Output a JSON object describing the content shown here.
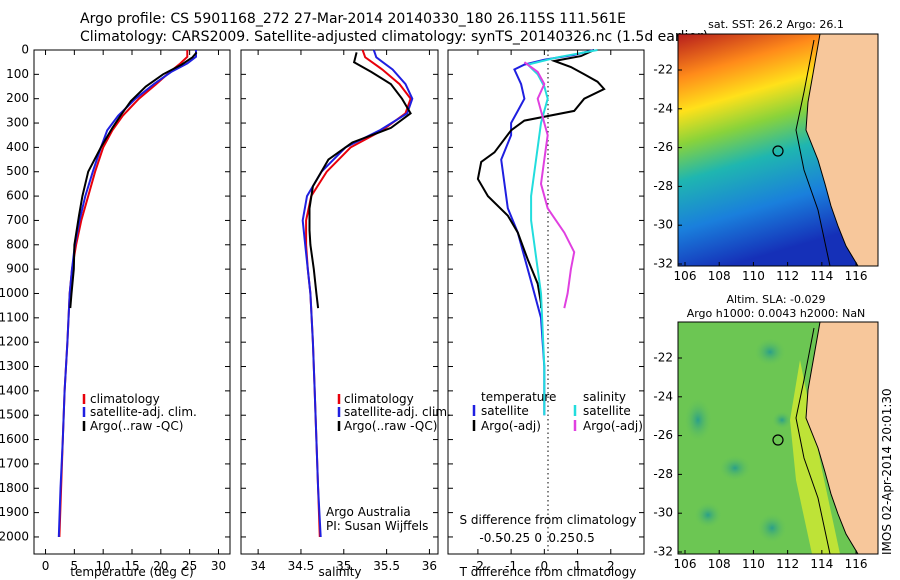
{
  "header": {
    "line1": "Argo profile: CS 5901168_272 27-Mar-2014 20140330_180 26.115S 111.561E",
    "line2": "Climatology: CARS2009. Satellite-adjusted climatology: synTS_20140326.nc (1.5d earlier)"
  },
  "colors": {
    "climatology": "#e8000b",
    "satellite": "#1f1fe0",
    "argo": "#000000",
    "sat_s": "#22dddd",
    "argo_s": "#e040e0",
    "land": "#f7c79b"
  },
  "depth_ticks": [
    "0",
    "100",
    "200",
    "300",
    "400",
    "500",
    "600",
    "700",
    "800",
    "900",
    "1000",
    "1100",
    "1200",
    "1300",
    "1400",
    "1500",
    "1600",
    "1700",
    "1800",
    "1900",
    "2000"
  ],
  "chart_data": [
    {
      "type": "line",
      "id": "temperature",
      "xlabel": "temperature (deg C)",
      "xlim": [
        -2,
        32
      ],
      "ylim": [
        0,
        2070
      ],
      "xticks": [
        "0",
        "5",
        "10",
        "15",
        "20",
        "25",
        "30"
      ],
      "legend": [
        "climatology",
        "satellite-adj. clim.",
        "Argo(..raw -QC)"
      ],
      "series": [
        {
          "name": "climatology",
          "color": "#e8000b",
          "points": [
            [
              24.6,
              0
            ],
            [
              24.6,
              28
            ],
            [
              23.4,
              55
            ],
            [
              21.6,
              90
            ],
            [
              19.2,
              140
            ],
            [
              16.2,
              200
            ],
            [
              13.4,
              270
            ],
            [
              11.6,
              330
            ],
            [
              10.0,
              400
            ],
            [
              8.6,
              500
            ],
            [
              7.4,
              600
            ],
            [
              6.2,
              700
            ],
            [
              5.3,
              800
            ],
            [
              4.6,
              900
            ],
            [
              4.2,
              1000
            ],
            [
              3.8,
              1200
            ],
            [
              3.3,
              1400
            ],
            [
              3.0,
              1600
            ],
            [
              2.7,
              1800
            ],
            [
              2.4,
              2000
            ]
          ]
        },
        {
          "name": "satellite-adj. clim.",
          "color": "#1f1fe0",
          "points": [
            [
              26.1,
              0
            ],
            [
              26.1,
              28
            ],
            [
              24.6,
              55
            ],
            [
              21.8,
              90
            ],
            [
              18.8,
              140
            ],
            [
              15.6,
              200
            ],
            [
              12.6,
              270
            ],
            [
              10.7,
              330
            ],
            [
              9.6,
              400
            ],
            [
              8.2,
              500
            ],
            [
              6.9,
              600
            ],
            [
              5.9,
              700
            ],
            [
              5.1,
              800
            ],
            [
              4.6,
              900
            ],
            [
              4.2,
              1000
            ],
            [
              3.8,
              1200
            ],
            [
              3.3,
              1400
            ],
            [
              3.0,
              1600
            ],
            [
              2.6,
              1800
            ],
            [
              2.3,
              2000
            ]
          ]
        },
        {
          "name": "Argo(..raw -QC)",
          "color": "#000000",
          "points": [
            [
              26.2,
              10
            ],
            [
              25.5,
              30
            ],
            [
              23.6,
              60
            ],
            [
              20.4,
              100
            ],
            [
              17.4,
              150
            ],
            [
              14.8,
              210
            ],
            [
              13.0,
              270
            ],
            [
              11.6,
              320
            ],
            [
              9.6,
              400
            ],
            [
              7.4,
              500
            ],
            [
              6.4,
              600
            ],
            [
              5.8,
              680
            ],
            [
              5.0,
              800
            ],
            [
              4.9,
              900
            ],
            [
              4.5,
              1000
            ],
            [
              4.3,
              1060
            ]
          ]
        }
      ]
    },
    {
      "type": "line",
      "id": "salinity",
      "xlabel": "salinity",
      "xlim": [
        33.8,
        36.1
      ],
      "ylim": [
        0,
        2070
      ],
      "xticks": [
        "34",
        "34.5",
        "35",
        "35.5",
        "36"
      ],
      "legend": [
        "climatology",
        "satellite-adj. clim.",
        "Argo(..raw -QC)"
      ],
      "annotation": [
        "Argo Australia",
        "PI: Susan Wijffels"
      ],
      "series": [
        {
          "name": "climatology",
          "color": "#e8000b",
          "points": [
            [
              35.22,
              0
            ],
            [
              35.25,
              30
            ],
            [
              35.45,
              80
            ],
            [
              35.65,
              140
            ],
            [
              35.78,
              200
            ],
            [
              35.72,
              260
            ],
            [
              35.45,
              330
            ],
            [
              35.08,
              400
            ],
            [
              34.8,
              500
            ],
            [
              34.62,
              600
            ],
            [
              34.56,
              700
            ],
            [
              34.56,
              800
            ],
            [
              34.58,
              900
            ],
            [
              34.61,
              1000
            ],
            [
              34.64,
              1200
            ],
            [
              34.66,
              1400
            ],
            [
              34.68,
              1600
            ],
            [
              34.7,
              1800
            ],
            [
              34.72,
              2000
            ]
          ]
        },
        {
          "name": "satellite-adj. clim.",
          "color": "#1f1fe0",
          "points": [
            [
              35.35,
              0
            ],
            [
              35.38,
              30
            ],
            [
              35.57,
              80
            ],
            [
              35.72,
              140
            ],
            [
              35.8,
              200
            ],
            [
              35.74,
              260
            ],
            [
              35.42,
              330
            ],
            [
              35.02,
              400
            ],
            [
              34.74,
              500
            ],
            [
              34.57,
              600
            ],
            [
              34.52,
              700
            ],
            [
              34.55,
              800
            ],
            [
              34.58,
              900
            ],
            [
              34.61,
              1000
            ],
            [
              34.64,
              1200
            ],
            [
              34.66,
              1400
            ],
            [
              34.68,
              1600
            ],
            [
              34.7,
              1800
            ],
            [
              34.73,
              2000
            ]
          ]
        },
        {
          "name": "Argo(..raw -QC)",
          "color": "#000000",
          "points": [
            [
              35.15,
              10
            ],
            [
              35.12,
              50
            ],
            [
              35.32,
              90
            ],
            [
              35.55,
              140
            ],
            [
              35.68,
              200
            ],
            [
              35.78,
              260
            ],
            [
              35.55,
              320
            ],
            [
              35.1,
              380
            ],
            [
              34.82,
              450
            ],
            [
              34.64,
              560
            ],
            [
              34.6,
              650
            ],
            [
              34.6,
              740
            ],
            [
              34.61,
              800
            ],
            [
              34.65,
              900
            ],
            [
              34.68,
              1000
            ],
            [
              34.7,
              1060
            ]
          ]
        }
      ]
    },
    {
      "type": "line",
      "id": "differences",
      "xlabel": "T difference from climatology",
      "xlabel_top": "S difference from climatology",
      "xlim": [
        -2.9,
        3.0
      ],
      "ylim": [
        0,
        2070
      ],
      "xticks": [
        "-2",
        "-1",
        "0",
        "1",
        "2"
      ],
      "xticks_s": [
        "-0.5",
        "-0.25",
        "0",
        "0.25",
        "0.5"
      ],
      "legend_titles": [
        "temperature",
        "salinity"
      ],
      "legend": [
        "satellite",
        "Argo(-adj)",
        "satellite",
        "Argo(-adj)"
      ],
      "series": [
        {
          "name": "satellite",
          "group": "temperature",
          "color": "#1f1fe0",
          "points": [
            [
              1.5,
              0
            ],
            [
              0.9,
              20
            ],
            [
              0,
              40
            ],
            [
              -0.6,
              60
            ],
            [
              -0.9,
              80
            ],
            [
              -0.7,
              140
            ],
            [
              -0.6,
              200
            ],
            [
              -0.8,
              250
            ],
            [
              -1.0,
              300
            ],
            [
              -1.0,
              350
            ],
            [
              -1.3,
              450
            ],
            [
              -1.2,
              550
            ],
            [
              -1.1,
              650
            ],
            [
              -0.8,
              750
            ],
            [
              -0.6,
              850
            ],
            [
              -0.4,
              950
            ],
            [
              -0.2,
              1050
            ],
            [
              -0.1,
              1100
            ],
            [
              0,
              1300
            ],
            [
              0,
              1500
            ]
          ]
        },
        {
          "name": "Argo(-adj)",
          "group": "temperature",
          "color": "#000000",
          "points": [
            [
              1.5,
              0
            ],
            [
              1.1,
              25
            ],
            [
              0.3,
              45
            ],
            [
              0.8,
              70
            ],
            [
              1.2,
              100
            ],
            [
              1.6,
              130
            ],
            [
              1.8,
              160
            ],
            [
              1.2,
              200
            ],
            [
              0.9,
              250
            ],
            [
              -0.6,
              290
            ],
            [
              -1.0,
              330
            ],
            [
              -1.5,
              420
            ],
            [
              -1.9,
              460
            ],
            [
              -2.0,
              530
            ],
            [
              -1.7,
              600
            ],
            [
              -1.1,
              680
            ],
            [
              -0.8,
              750
            ],
            [
              -0.5,
              860
            ],
            [
              -0.2,
              960
            ],
            [
              -0.1,
              1040
            ],
            [
              -0.1,
              1060
            ]
          ]
        },
        {
          "name": "satellite",
          "group": "salinity",
          "color": "#22dddd",
          "points": [
            [
              1.6,
              0
            ],
            [
              0.4,
              30
            ],
            [
              -0.5,
              60
            ],
            [
              -0.2,
              100
            ],
            [
              0,
              150
            ],
            [
              0.1,
              200
            ],
            [
              0,
              250
            ],
            [
              -0.1,
              300
            ],
            [
              -0.2,
              400
            ],
            [
              -0.3,
              500
            ],
            [
              -0.4,
              600
            ],
            [
              -0.4,
              700
            ],
            [
              -0.3,
              800
            ],
            [
              -0.2,
              900
            ],
            [
              -0.1,
              1000
            ],
            [
              0,
              1300
            ],
            [
              0,
              1500
            ]
          ]
        },
        {
          "name": "Argo(-adj)",
          "group": "salinity",
          "color": "#e040e0",
          "points": [
            [
              -0.6,
              50
            ],
            [
              -0.2,
              90
            ],
            [
              0,
              140
            ],
            [
              -0.2,
              200
            ],
            [
              -0.1,
              250
            ],
            [
              0,
              300
            ],
            [
              0.1,
              350
            ],
            [
              0,
              450
            ],
            [
              -0.1,
              550
            ],
            [
              0.1,
              650
            ],
            [
              0.6,
              750
            ],
            [
              0.9,
              830
            ],
            [
              0.8,
              900
            ],
            [
              0.7,
              1000
            ],
            [
              0.6,
              1060
            ]
          ]
        }
      ]
    }
  ],
  "maps": [
    {
      "title": "sat. SST: 26.2 Argo: 26.1",
      "lon_ticks": [
        "106",
        "108",
        "110",
        "112",
        "114",
        "116"
      ],
      "lat_ticks": [
        "-22",
        "-24",
        "-26",
        "-28",
        "-30",
        "-32"
      ]
    },
    {
      "title_line1": "Altim. SLA: -0.029",
      "title_line2": "Argo h1000: 0.0043 h2000: NaN",
      "lon_ticks": [
        "106",
        "108",
        "110",
        "112",
        "114",
        "116"
      ],
      "lat_ticks": [
        "-22",
        "-24",
        "-26",
        "-28",
        "-30",
        "-32"
      ]
    }
  ],
  "footer_stamp": "IMOS 02-Apr-2014 20:01:30"
}
